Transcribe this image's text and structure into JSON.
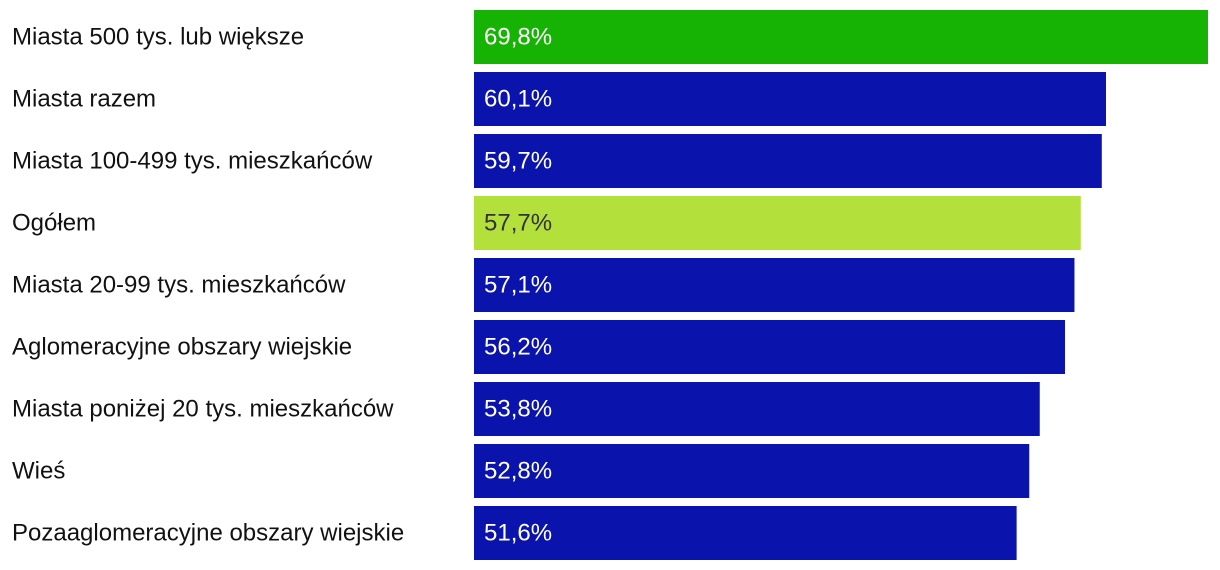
{
  "chart_data": {
    "type": "hbar",
    "categories": [
      "Miasta 500 tys. lub większe",
      "Miasta razem",
      "Miasta 100-499 tys. mieszkańców",
      "Ogółem",
      "Miasta 20-99 tys. mieszkańców",
      "Aglomeracyjne obszary wiejskie",
      "Miasta poniżej 20 tys. mieszkańców",
      "Wieś",
      "Pozaaglomeracyjne obszary wiejskie"
    ],
    "values": [
      69.8,
      60.1,
      59.7,
      57.7,
      57.1,
      56.2,
      53.8,
      52.8,
      51.6
    ],
    "value_labels": [
      "69,8%",
      "60,1%",
      "59,7%",
      "57,7%",
      "57,1%",
      "56,2%",
      "53,8%",
      "52,8%",
      "51,6%"
    ],
    "colors": [
      "#17b304",
      "#0a14ad",
      "#0a14ad",
      "#b3e03a",
      "#0a14ad",
      "#0a14ad",
      "#0a14ad",
      "#0a14ad",
      "#0a14ad"
    ]
  }
}
